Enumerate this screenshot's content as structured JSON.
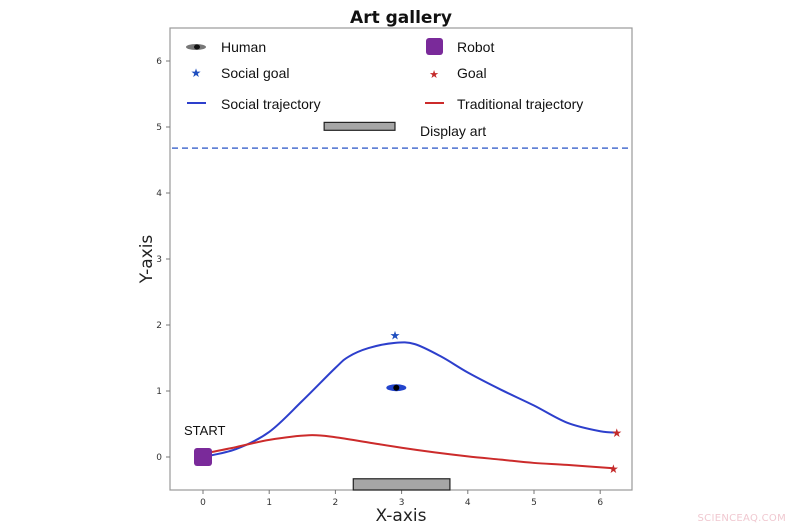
{
  "chart_data": {
    "type": "line",
    "title": "Art gallery",
    "xlabel": "X-axis",
    "ylabel": "Y-axis",
    "xlim": [
      -0.5,
      6.5
    ],
    "ylim": [
      -0.5,
      6.5
    ],
    "xticks": [
      "0",
      "1",
      "2",
      "3",
      "4",
      "5",
      "6"
    ],
    "yticks": [
      "0",
      "1",
      "2",
      "3",
      "4",
      "5",
      "6"
    ],
    "grid": false,
    "legend_position": "upper, inside plot, two columns",
    "series": [
      {
        "name": "Social trajectory",
        "color": "#2d3fcc",
        "points": [
          [
            0,
            0
          ],
          [
            0.5,
            0.12
          ],
          [
            1,
            0.38
          ],
          [
            1.5,
            0.85
          ],
          [
            2,
            1.35
          ],
          [
            2.2,
            1.52
          ],
          [
            2.5,
            1.65
          ],
          [
            2.9,
            1.73
          ],
          [
            3.2,
            1.71
          ],
          [
            3.6,
            1.52
          ],
          [
            4,
            1.28
          ],
          [
            4.5,
            1.02
          ],
          [
            5,
            0.78
          ],
          [
            5.5,
            0.52
          ],
          [
            6,
            0.39
          ],
          [
            6.25,
            0.37
          ]
        ]
      },
      {
        "name": "Traditional trajectory",
        "color": "#cc2b2b",
        "points": [
          [
            0,
            0.05
          ],
          [
            0.5,
            0.15
          ],
          [
            1,
            0.26
          ],
          [
            1.6,
            0.33
          ],
          [
            2,
            0.3
          ],
          [
            2.5,
            0.22
          ],
          [
            3,
            0.14
          ],
          [
            3.5,
            0.07
          ],
          [
            4,
            0.01
          ],
          [
            4.5,
            -0.04
          ],
          [
            5,
            -0.09
          ],
          [
            5.5,
            -0.12
          ],
          [
            6.2,
            -0.17
          ]
        ]
      }
    ],
    "markers": {
      "robot": {
        "label": "Robot",
        "x": 0,
        "y": 0,
        "color": "#7a2a9a"
      },
      "human": {
        "label": "Human",
        "x": 2.92,
        "y": 1.05,
        "color": "#2244cc"
      },
      "social_goal": {
        "label": "Social goal",
        "x": 2.9,
        "y": 1.85,
        "color": "#1f4fbf"
      },
      "goal_social_end": {
        "label": "Goal",
        "x": 6.25,
        "y": 0.37,
        "color": "#c42a2a"
      },
      "goal_traditional_end": {
        "label": "Goal",
        "x": 6.2,
        "y": -0.17,
        "color": "#c42a2a"
      }
    },
    "display_art": [
      {
        "x0": 1.83,
        "x1": 2.9,
        "y0": 4.95,
        "y1": 5.07
      },
      {
        "x0": 2.27,
        "x1": 3.73,
        "y0": -0.5,
        "y1": -0.33
      }
    ],
    "boundary_line": {
      "y": 4.68,
      "style": "dashed",
      "color": "#4a6fcf"
    },
    "annotations": [
      {
        "text": "START",
        "x": 0,
        "y": 0.3
      }
    ]
  },
  "legend": {
    "items": [
      {
        "label": "Human",
        "icon": "human-ellipse-icon"
      },
      {
        "label": "Robot",
        "icon": "robot-square-icon"
      },
      {
        "label": "Social goal",
        "icon": "blue-star-icon"
      },
      {
        "label": "Goal",
        "icon": "red-star-icon"
      },
      {
        "label": "Social trajectory",
        "icon": "blue-line-icon"
      },
      {
        "label": "Traditional trajectory",
        "icon": "red-line-icon"
      },
      {
        "label": "Display art",
        "icon": "gray-rect-icon"
      }
    ]
  },
  "watermark": "SCIENCEAQ.COM"
}
